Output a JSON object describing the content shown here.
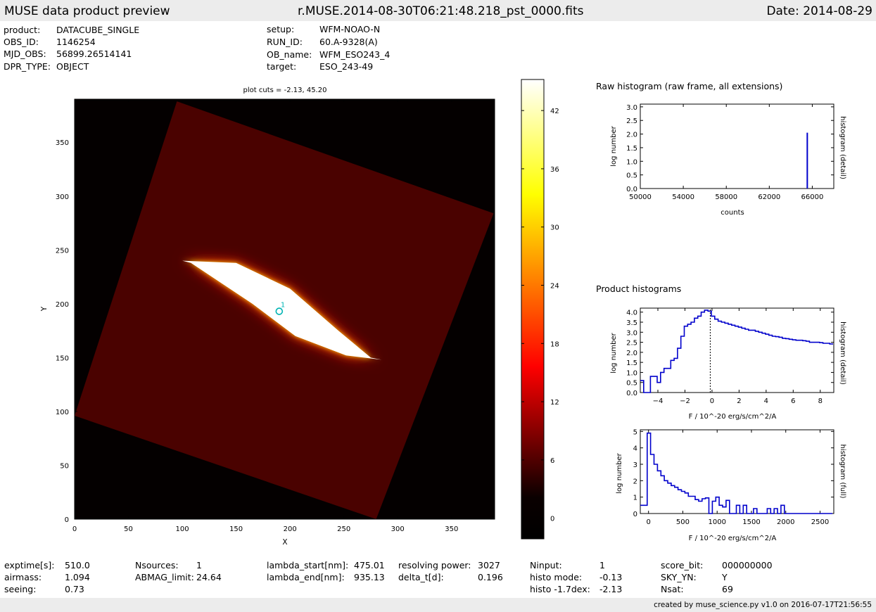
{
  "header": {
    "title": "MUSE data product preview",
    "filename": "r.MUSE.2014-08-30T06:21:48.218_pst_0000.fits",
    "date": "Date: 2014-08-29"
  },
  "meta_left": [
    {
      "key": "product:",
      "value": "DATACUBE_SINGLE"
    },
    {
      "key": "OBS_ID:",
      "value": "1146254"
    },
    {
      "key": "MJD_OBS:",
      "value": "56899.26514141"
    },
    {
      "key": "DPR_TYPE:",
      "value": "OBJECT"
    }
  ],
  "meta_right": [
    {
      "key": "setup:",
      "value": "WFM-NOAO-N"
    },
    {
      "key": "RUN_ID:",
      "value": "60.A-9328(A)"
    },
    {
      "key": "OB_name:",
      "value": "WFM_ESO243_4"
    },
    {
      "key": "target:",
      "value": "ESO_243-49"
    }
  ],
  "footer_stats": [
    {
      "key": "exptime[s]:",
      "value": "510.0"
    },
    {
      "key": "airmass:",
      "value": "1.094"
    },
    {
      "key": "seeing:",
      "value": "0.73"
    },
    {
      "key": "Nsources:",
      "value": "1"
    },
    {
      "key": "ABMAG_limit:",
      "value": "24.64"
    },
    {
      "key": "lambda_start[nm]:",
      "value": "475.01"
    },
    {
      "key": "lambda_end[nm]:",
      "value": "935.13"
    },
    {
      "key": "resolving power:",
      "value": "3027"
    },
    {
      "key": "delta_t[d]:",
      "value": "0.196"
    },
    {
      "key": "Ninput:",
      "value": "1"
    },
    {
      "key": "histo mode:",
      "value": "-0.13"
    },
    {
      "key": "histo -1.7dex:",
      "value": "-2.13"
    },
    {
      "key": "score_bit:",
      "value": "000000000"
    },
    {
      "key": "SKY_YN:",
      "value": "Y"
    },
    {
      "key": "Nsat:",
      "value": "69"
    }
  ],
  "credit": "created by muse_science.py v1.0 on 2016-07-17T21:56:55",
  "chart_data": [
    {
      "type": "heatmap",
      "title": "plot cuts = -2.13, 45.20",
      "xlabel": "X",
      "ylabel": "Y",
      "xlim": [
        0,
        390
      ],
      "ylim": [
        0,
        390
      ],
      "xticks": [
        0,
        50,
        100,
        150,
        200,
        250,
        300,
        350
      ],
      "yticks": [
        0,
        50,
        100,
        150,
        200,
        250,
        300,
        350
      ],
      "colorbar_range": [
        -2.13,
        45.2
      ],
      "colorbar_ticks": [
        0,
        6,
        12,
        18,
        24,
        30,
        36,
        42
      ],
      "colormap": "hot",
      "field_corners": [
        [
          0,
          96
        ],
        [
          95,
          388
        ],
        [
          389,
          284
        ],
        [
          280,
          0
        ]
      ],
      "galaxy_outline": [
        [
          100,
          240
        ],
        [
          150,
          238
        ],
        [
          200,
          214
        ],
        [
          245,
          175
        ],
        [
          275,
          150
        ],
        [
          285,
          148
        ],
        [
          252,
          152
        ],
        [
          205,
          170
        ],
        [
          165,
          200
        ],
        [
          108,
          238
        ]
      ],
      "source": {
        "label": "1",
        "x": 190,
        "y": 193,
        "color": "#00b4b4"
      }
    },
    {
      "type": "bar",
      "title": "Raw histogram (raw frame, all extensions)",
      "xlabel": "counts",
      "ylabel": "log number",
      "y2label": "histogram (detail)",
      "xlim": [
        50000,
        68000
      ],
      "ylim": [
        0,
        3.1
      ],
      "xticks": [
        50000,
        54000,
        58000,
        62000,
        66000
      ],
      "yticks": [
        0.0,
        0.5,
        1.0,
        1.5,
        2.0,
        2.5,
        3.0
      ],
      "spike": {
        "x": 65535,
        "y": 2.05
      },
      "color": "#0000cc"
    },
    {
      "type": "line",
      "title": "Product histograms",
      "xlabel": "F / 10^-20 erg/s/cm^2/A",
      "ylabel": "log number",
      "y2label": "histogram (detail)",
      "xlim": [
        -5.3,
        9
      ],
      "ylim": [
        0,
        4.2
      ],
      "xticks": [
        -4,
        -2,
        0,
        2,
        4,
        6,
        8
      ],
      "yticks": [
        0.0,
        0.5,
        1.0,
        1.5,
        2.0,
        2.5,
        3.0,
        3.5,
        4.0
      ],
      "bin_edge_start": -5.3,
      "bin_width": 0.25,
      "values": [
        0.6,
        0.0,
        0.0,
        0.8,
        0.8,
        0.5,
        1.0,
        1.2,
        1.2,
        1.6,
        1.7,
        2.2,
        2.8,
        3.3,
        3.4,
        3.5,
        3.7,
        3.8,
        4.0,
        4.1,
        4.05,
        3.8,
        3.65,
        3.55,
        3.5,
        3.45,
        3.4,
        3.35,
        3.3,
        3.25,
        3.2,
        3.15,
        3.1,
        3.1,
        3.05,
        3.0,
        2.95,
        2.9,
        2.85,
        2.8,
        2.78,
        2.75,
        2.7,
        2.68,
        2.65,
        2.62,
        2.6,
        2.6,
        2.58,
        2.55,
        2.5,
        2.5,
        2.5,
        2.48,
        2.45,
        2.45,
        2.42
      ],
      "mode_marker_x": -0.13,
      "color": "#0000cc"
    },
    {
      "type": "line",
      "title": "",
      "xlabel": "F / 10^-20 erg/s/cm^2/A",
      "ylabel": "log number",
      "y2label": "histogram (full)",
      "xlim": [
        -120,
        2700
      ],
      "ylim": [
        0,
        5.1
      ],
      "xticks": [
        0,
        500,
        1000,
        1500,
        2000,
        2500
      ],
      "yticks": [
        0,
        1,
        2,
        3,
        4,
        5
      ],
      "bin_edge_start": -120,
      "bin_width": 50,
      "values": [
        0.5,
        0.5,
        4.9,
        3.6,
        3.0,
        2.6,
        2.3,
        2.0,
        1.85,
        1.7,
        1.6,
        1.45,
        1.35,
        1.25,
        1.05,
        1.05,
        0.85,
        0.75,
        0.9,
        0.95,
        0.0,
        0.75,
        1.0,
        0.5,
        0.4,
        0.8,
        0.0,
        0.0,
        0.5,
        0.0,
        0.5,
        0.0,
        0.0,
        0.3,
        0.0,
        0.0,
        0.0,
        0.3,
        0.0,
        0.3,
        0.0,
        0.5,
        0.0,
        0.0,
        0.0,
        0.0,
        0.0,
        0.0,
        0.0,
        0.0,
        0.0,
        0.0,
        0.0,
        0.0,
        0.0,
        0.0
      ],
      "color": "#0000cc"
    }
  ]
}
